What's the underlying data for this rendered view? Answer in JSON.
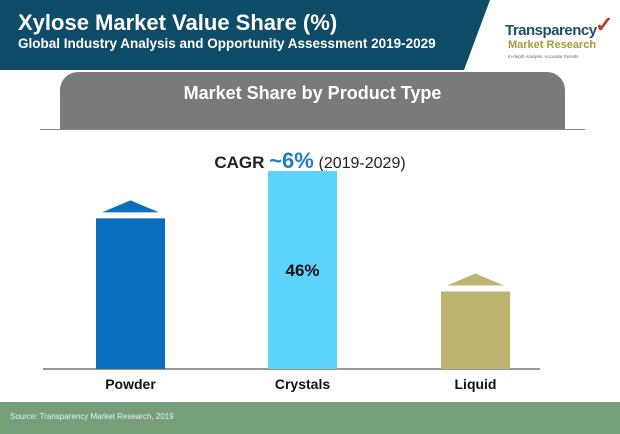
{
  "header": {
    "title": "Xylose Market Value Share (%)",
    "subtitle": "Global Industry Analysis and Opportunity Assessment 2019-2029",
    "bg_color": "#0f4c68"
  },
  "logo": {
    "line1": "Transparency",
    "line2": "Market Research",
    "tagline": "In-depth Analysis. Accurate Results"
  },
  "section_title": "Market Share by Product Type",
  "cagr": {
    "label": "CAGR",
    "value": "~6%",
    "period": "(2019-2029)"
  },
  "chart_data": {
    "type": "bar",
    "categories": [
      "Powder",
      "Crystals",
      "Liquid"
    ],
    "values": [
      35,
      46,
      18
    ],
    "data_labels": [
      "",
      "46%",
      ""
    ],
    "colors": [
      "#0a6fbf",
      "#5bd3fb",
      "#bdb472"
    ],
    "ylim": [
      0,
      46
    ],
    "grid": false
  },
  "footer": {
    "source": "Source: Transparency Market Research, 2019"
  }
}
